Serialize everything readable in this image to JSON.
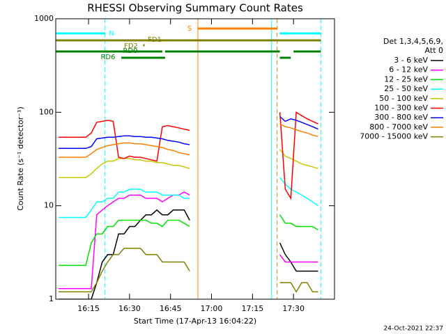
{
  "chart_data": {
    "type": "line",
    "title": "RHESSI Observing Summary Count Rates",
    "xlabel": "Start Time (17-Apr-13 16:04:22)",
    "ylabel": "Count Rate (s⁻¹ detector⁻¹)",
    "legend_title": [
      "Det 1,3,4,5,6,9,",
      "Att 0"
    ],
    "timestamp": "24-Oct-2021 22:37",
    "log_y": true,
    "legend": "right",
    "xlim": [
      "16:03",
      "17:45"
    ],
    "xticks": [
      "16:15",
      "16:30",
      "16:45",
      "17:00",
      "17:15",
      "17:30"
    ],
    "ylim": [
      1,
      1000
    ],
    "yticks": [
      1,
      10,
      100,
      1000
    ],
    "x": [
      "16:04",
      "16:06",
      "16:08",
      "16:10",
      "16:12",
      "16:14",
      "16:16",
      "16:18",
      "16:20",
      "16:22",
      "16:24",
      "16:26",
      "16:28",
      "16:30",
      "16:32",
      "16:34",
      "16:36",
      "16:38",
      "16:40",
      "16:42",
      "16:44",
      "16:46",
      "16:48",
      "16:50",
      "16:52",
      "17:08",
      "17:25",
      "17:27",
      "17:29",
      "17:31",
      "17:33",
      "17:35",
      "17:37",
      "17:39"
    ],
    "series": [
      {
        "name": "3 - 6 keV",
        "color": "#000000",
        "values": [
          1,
          1,
          1,
          1,
          1,
          1,
          1,
          1.5,
          2.5,
          3,
          3,
          5,
          5,
          6,
          6,
          7,
          8,
          8,
          9,
          8,
          8,
          9,
          9,
          9,
          7,
          null,
          4,
          3,
          2.5,
          2,
          2,
          2,
          2,
          2
        ]
      },
      {
        "name": "6 - 12 keV",
        "color": "#ff00ff",
        "values": [
          1.3,
          1.3,
          1.3,
          1.3,
          1.3,
          1.3,
          1.3,
          8,
          9,
          10,
          11,
          12,
          12,
          13,
          13,
          13,
          12,
          12,
          12,
          11,
          12,
          13,
          13,
          14,
          13,
          null,
          3,
          2.5,
          2.5,
          2.5,
          2.5,
          2.5,
          2.5,
          2.5
        ]
      },
      {
        "name": "12 - 25 keV",
        "color": "#00e000",
        "values": [
          2.3,
          2.3,
          2.3,
          2.3,
          2.3,
          2.3,
          4,
          5,
          5,
          6,
          6,
          7,
          7,
          7,
          7,
          7,
          7,
          6.5,
          6.5,
          6,
          7,
          7,
          7,
          6.5,
          6,
          null,
          8,
          6.5,
          6.5,
          6,
          6,
          6,
          6,
          5.5
        ]
      },
      {
        "name": "25 - 50 keV",
        "color": "#00ffff",
        "values": [
          7.5,
          7.5,
          7.5,
          7.5,
          7.5,
          7.5,
          9,
          11,
          11,
          12,
          12,
          14,
          14,
          15,
          15,
          15,
          14,
          14,
          14,
          13,
          13,
          13,
          13,
          12,
          12,
          null,
          20,
          17,
          15,
          14,
          13,
          12,
          11,
          10
        ]
      },
      {
        "name": "50 - 100 keV",
        "color": "#c8c800",
        "values": [
          20,
          20,
          20,
          20,
          20,
          20,
          22,
          25,
          28,
          30,
          30,
          32,
          32,
          32,
          31,
          31,
          30,
          30,
          29,
          29,
          28,
          27,
          27,
          26,
          25,
          null,
          40,
          34,
          32,
          30,
          28,
          27,
          26,
          25
        ]
      },
      {
        "name": "100 - 300 keV",
        "color": "#ff0000",
        "values": [
          54,
          54,
          54,
          54,
          54,
          54,
          60,
          78,
          80,
          82,
          80,
          33,
          32,
          34,
          33,
          33,
          32,
          31,
          30,
          70,
          72,
          70,
          68,
          66,
          64,
          null,
          100,
          15,
          12,
          100,
          92,
          85,
          80,
          75
        ]
      },
      {
        "name": "300 - 800 keV",
        "color": "#0000ff",
        "values": [
          41,
          41,
          41,
          41,
          41,
          41,
          43,
          52,
          53,
          54,
          54,
          55,
          56,
          56,
          55,
          55,
          54,
          54,
          53,
          52,
          50,
          49,
          48,
          46,
          45,
          null,
          90,
          80,
          85,
          82,
          78,
          74,
          70,
          66
        ]
      },
      {
        "name": "800 - 7000 keV",
        "color": "#ff8000",
        "values": [
          33,
          33,
          33,
          33,
          33,
          33,
          36,
          40,
          42,
          44,
          45,
          46,
          47,
          47,
          46,
          46,
          45,
          44,
          43,
          42,
          40,
          39,
          37,
          36,
          35,
          null,
          75,
          70,
          68,
          65,
          62,
          60,
          57,
          55
        ]
      },
      {
        "name": "7000 - 15000 keV",
        "color": "#808000",
        "values": [
          1.2,
          1.2,
          1.2,
          1.2,
          1.2,
          1.2,
          1.2,
          1.5,
          2,
          2.5,
          3,
          3,
          3.5,
          3.5,
          3.5,
          3.5,
          3,
          3,
          3,
          2.5,
          2.5,
          2.5,
          2.5,
          2.5,
          2,
          null,
          1.5,
          1.5,
          1.5,
          1.2,
          1.5,
          1.5,
          1.2,
          1.2
        ]
      }
    ],
    "flags": [
      {
        "label": "S",
        "color": "#ff8000",
        "segments": [
          [
            "16:55",
            "17:24"
          ]
        ]
      },
      {
        "label": "N",
        "color": "#00ffff",
        "segments": [
          [
            "16:03",
            "16:21"
          ],
          [
            "17:25",
            "17:40"
          ]
        ]
      },
      {
        "label": "FD1",
        "color": "#808000",
        "segments": [
          [
            "16:03",
            "17:40"
          ]
        ]
      },
      {
        "label": "FD2",
        "color": "#808000",
        "segments": [
          [
            "16:35",
            "16:35"
          ]
        ]
      },
      {
        "label": "RD0",
        "color": "#008000",
        "segments": [
          [
            "16:03",
            "16:42"
          ],
          [
            "16:43",
            "17:25"
          ],
          [
            "17:30",
            "17:40"
          ]
        ]
      },
      {
        "label": "RD6",
        "color": "#008000",
        "segments": [
          [
            "16:27",
            "16:43"
          ],
          [
            "17:25",
            "17:29"
          ]
        ]
      }
    ],
    "vlines": [
      {
        "x": "16:03",
        "color": "#00ffff",
        "dashed": false
      },
      {
        "x": "16:21",
        "color": "#00ffff",
        "dashed": true
      },
      {
        "x": "16:55",
        "color": "#ff8000",
        "dashed": false
      },
      {
        "x": "17:22",
        "color": "#00ffff",
        "dashed": false
      },
      {
        "x": "17:24",
        "color": "#ff8000",
        "dashed": true
      },
      {
        "x": "17:40",
        "color": "#00ffff",
        "dashed": true
      }
    ]
  }
}
